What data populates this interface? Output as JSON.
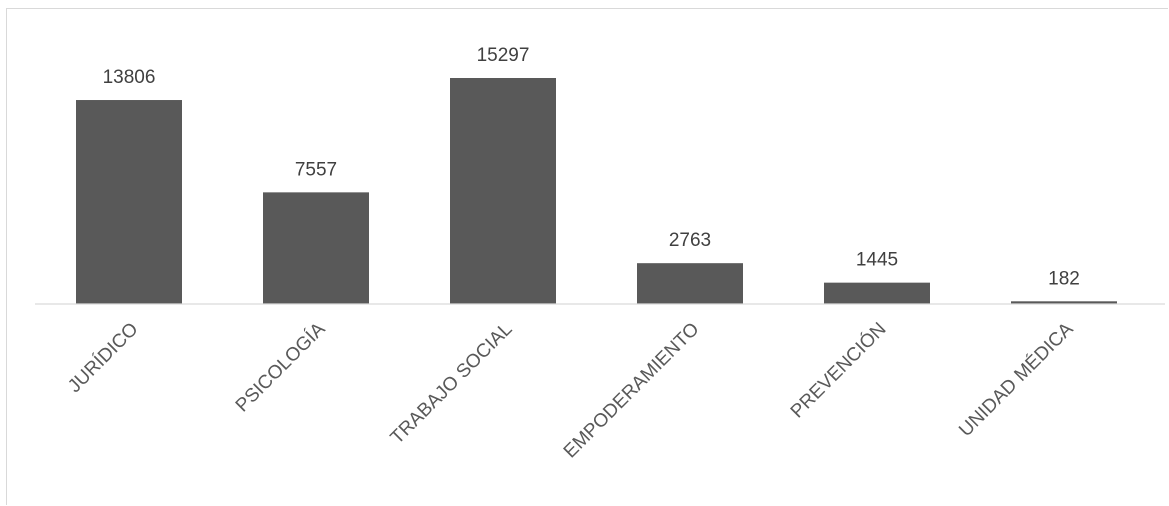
{
  "chart_data": {
    "type": "bar",
    "categories": [
      "JURÍDICO",
      "PSICOLOGÍA",
      "TRABAJO SOCIAL",
      "EMPODERAMIENTO",
      "PREVENCIÓN",
      "UNIDAD MÉDICA"
    ],
    "values": [
      13806,
      7557,
      15297,
      2763,
      1445,
      182
    ],
    "data_labels": [
      "13806",
      "7557",
      "15297",
      "2763",
      "1445",
      "182"
    ],
    "title": "",
    "xlabel": "",
    "ylabel": "",
    "ylim": [
      0,
      15297
    ],
    "grid": false,
    "legend": "none",
    "colors": {
      "bar": "#595959",
      "label": "#404040",
      "axis": "#d9d9d9"
    }
  }
}
